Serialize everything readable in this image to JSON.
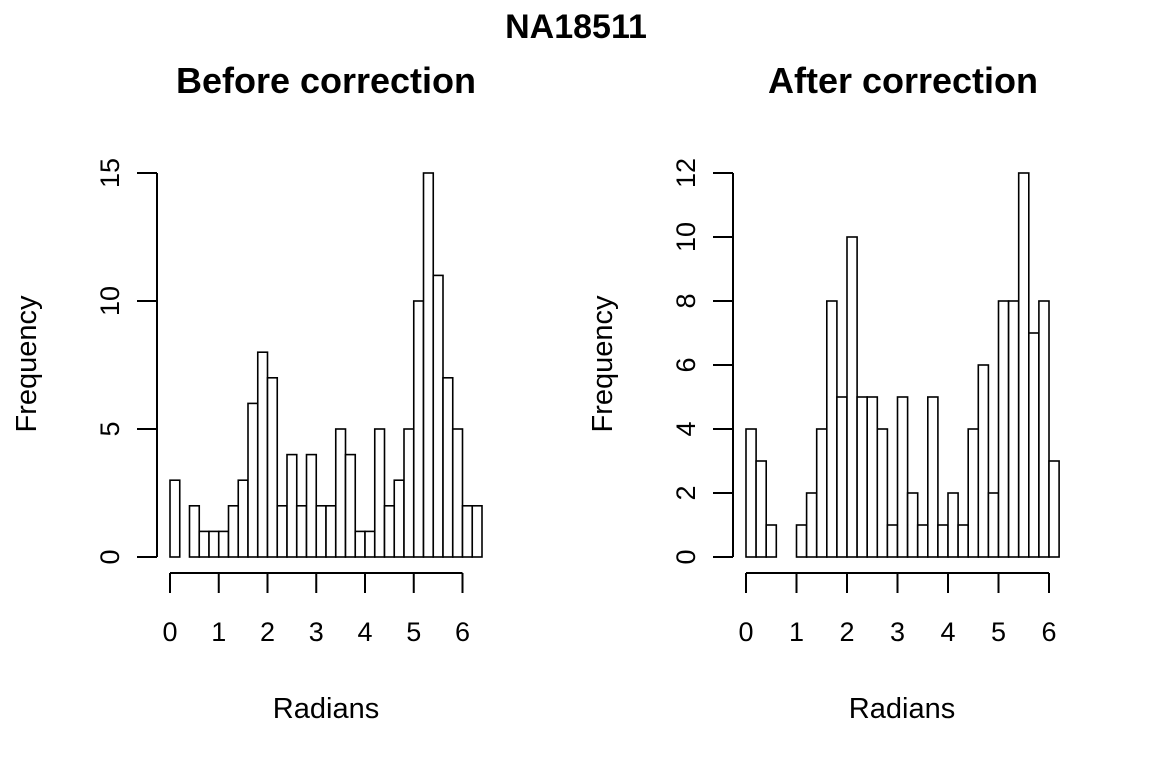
{
  "figure_title": "NA18511",
  "chart_data": [
    {
      "type": "bar",
      "title": "Before correction",
      "xlabel": "Radians",
      "ylabel": "Frequency",
      "bin_width": 0.2,
      "bins_start": [
        0.0,
        0.2,
        0.4,
        0.6,
        0.8,
        1.0,
        1.2,
        1.4,
        1.6,
        1.8,
        2.0,
        2.2,
        2.4,
        2.6,
        2.8,
        3.0,
        3.2,
        3.4,
        3.6,
        3.8,
        4.0,
        4.2,
        4.4,
        4.6,
        4.8,
        5.0,
        5.2,
        5.4,
        5.6,
        5.8,
        6.0,
        6.2
      ],
      "values": [
        3,
        0,
        2,
        1,
        1,
        1,
        2,
        3,
        6,
        8,
        7,
        2,
        4,
        2,
        4,
        2,
        2,
        5,
        4,
        1,
        1,
        5,
        2,
        3,
        5,
        10,
        15,
        11,
        7,
        5,
        2,
        2
      ],
      "xlim": [
        0,
        6.4
      ],
      "ylim": [
        0,
        15
      ],
      "x_ticks": [
        "0",
        "1",
        "2",
        "3",
        "4",
        "5",
        "6"
      ],
      "y_ticks": [
        "0",
        "5",
        "10",
        "15"
      ]
    },
    {
      "type": "bar",
      "title": "After correction",
      "xlabel": "Radians",
      "ylabel": "Frequency",
      "bin_width": 0.2,
      "bins_start": [
        0.0,
        0.2,
        0.4,
        0.6,
        0.8,
        1.0,
        1.2,
        1.4,
        1.6,
        1.8,
        2.0,
        2.2,
        2.4,
        2.6,
        2.8,
        3.0,
        3.2,
        3.4,
        3.6,
        3.8,
        4.0,
        4.2,
        4.4,
        4.6,
        4.8,
        5.0,
        5.2,
        5.4,
        5.6,
        5.8,
        6.0
      ],
      "values": [
        4,
        3,
        1,
        0,
        0,
        1,
        2,
        4,
        8,
        5,
        10,
        5,
        5,
        4,
        1,
        5,
        2,
        1,
        5,
        1,
        2,
        1,
        4,
        6,
        2,
        8,
        8,
        12,
        7,
        8,
        3
      ],
      "xlim": [
        0,
        6.2
      ],
      "ylim": [
        0,
        12
      ],
      "x_ticks": [
        "0",
        "1",
        "2",
        "3",
        "4",
        "5",
        "6"
      ],
      "y_ticks": [
        "0",
        "2",
        "4",
        "6",
        "8",
        "10",
        "12"
      ]
    }
  ]
}
